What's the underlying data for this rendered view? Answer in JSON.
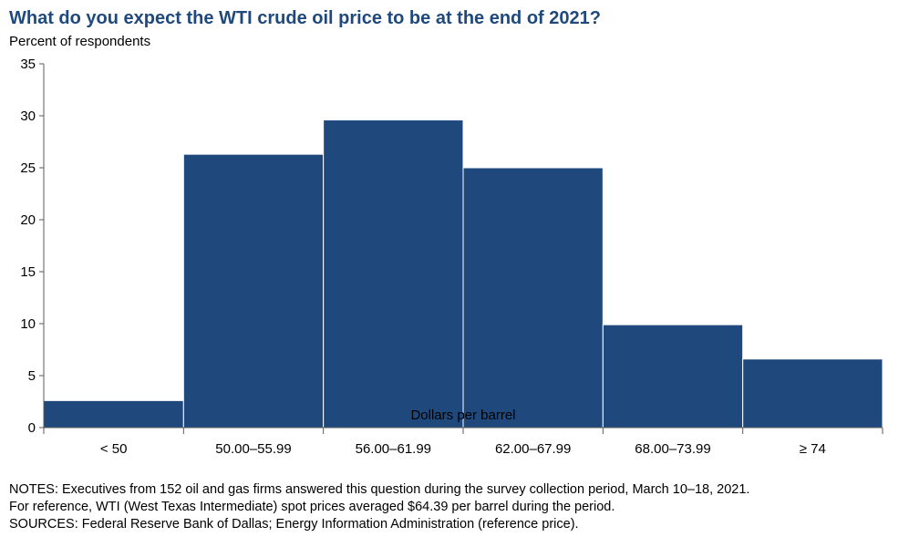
{
  "chart_data": {
    "type": "bar",
    "title": "What do you expect the WTI crude oil price to be at the end of 2021?",
    "ylabel": "Percent of respondents",
    "xlabel": "Dollars per barrel",
    "categories": [
      "< 50",
      "50.00–55.99",
      "56.00–61.99",
      "62.00–67.99",
      "68.00–73.99",
      "≥ 74"
    ],
    "values": [
      2.6,
      26.3,
      29.6,
      25.0,
      9.9,
      6.6
    ],
    "ylim": [
      0,
      35
    ],
    "yticks": [
      "0",
      "5",
      "10",
      "15",
      "20",
      "25",
      "30",
      "35"
    ],
    "grid": false,
    "bar_color": "#1f497d"
  },
  "notes": [
    "NOTES: Executives from 152 oil and gas firms answered this question during the survey collection period, March 10–18, 2021.",
    "For reference, WTI (West Texas Intermediate) spot prices averaged $64.39 per barrel during the period.",
    "SOURCES: Federal Reserve Bank of Dallas; Energy Information Administration (reference price)."
  ]
}
